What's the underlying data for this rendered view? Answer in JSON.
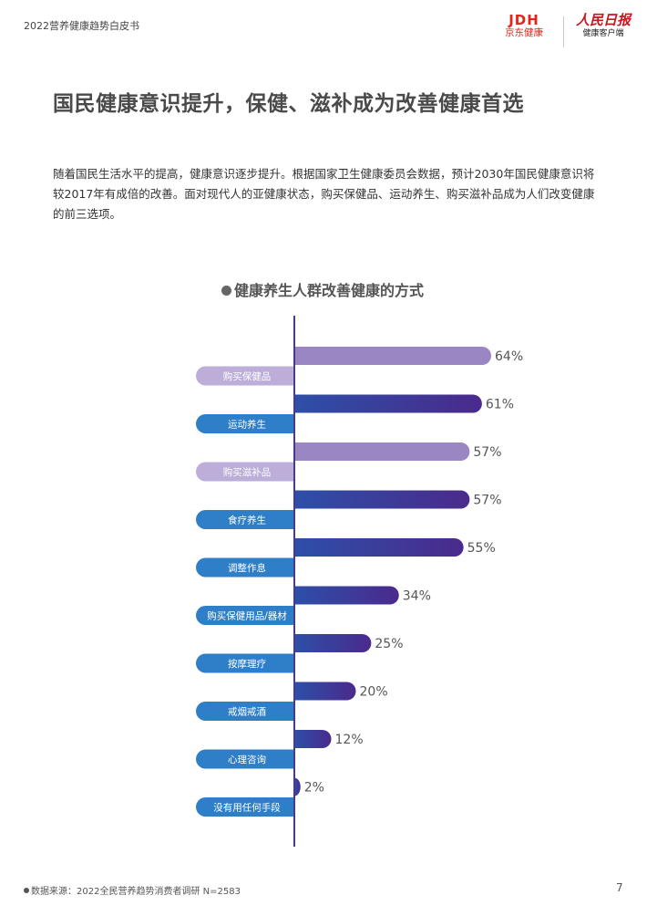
{
  "header": {
    "report_title": "2022营养健康趋势白皮书",
    "jd_logo": "JDH",
    "jd_name": "京东健康",
    "rmrb_logo": "人民日报",
    "rmrb_sub": "健康客户端"
  },
  "page_title": "国民健康意识提升，保健、滋补成为改善健康首选",
  "intro": "随着国民生活水平的提高，健康意识逐步提升。根据国家卫生健康委员会数据，预计2030年国民健康意识将较2017年有成倍的改善。面对现代人的亚健康状态，购买保健品、运动养生、购买滋补品成为人们改变健康的前三选项。",
  "footer": {
    "source": "数据来源：2022全民营养趋势消费者调研 N=2583",
    "page_number": "7"
  },
  "chart_data": {
    "type": "bar",
    "orientation": "horizontal",
    "title": "健康养生人群改善健康的方式",
    "xlabel": "",
    "ylabel": "",
    "xlim": [
      0,
      100
    ],
    "unit": "%",
    "categories": [
      "购买保健品",
      "运动养生",
      "购买滋补品",
      "食疗养生",
      "调整作息",
      "购买保健用品/器材",
      "按摩理疗",
      "戒烟戒酒",
      "心理咨询",
      "没有用任何手段"
    ],
    "values": [
      64,
      61,
      57,
      57,
      55,
      34,
      25,
      20,
      12,
      2
    ],
    "value_labels": [
      "64%",
      "61%",
      "57%",
      "57%",
      "55%",
      "34%",
      "25%",
      "20%",
      "12%",
      "2%"
    ],
    "highlighted": [
      true,
      false,
      true,
      false,
      false,
      false,
      false,
      false,
      false,
      false
    ],
    "colors": {
      "highlight_bar": "#9a86c2",
      "highlight_label_bg": "#bcaed8",
      "bar_gradient_start": "#2d4fa8",
      "bar_gradient_end": "#4a2a8c",
      "label_bg": "#2f7fc8",
      "axis": "#4a3a8c",
      "value_text": "#555555"
    }
  }
}
